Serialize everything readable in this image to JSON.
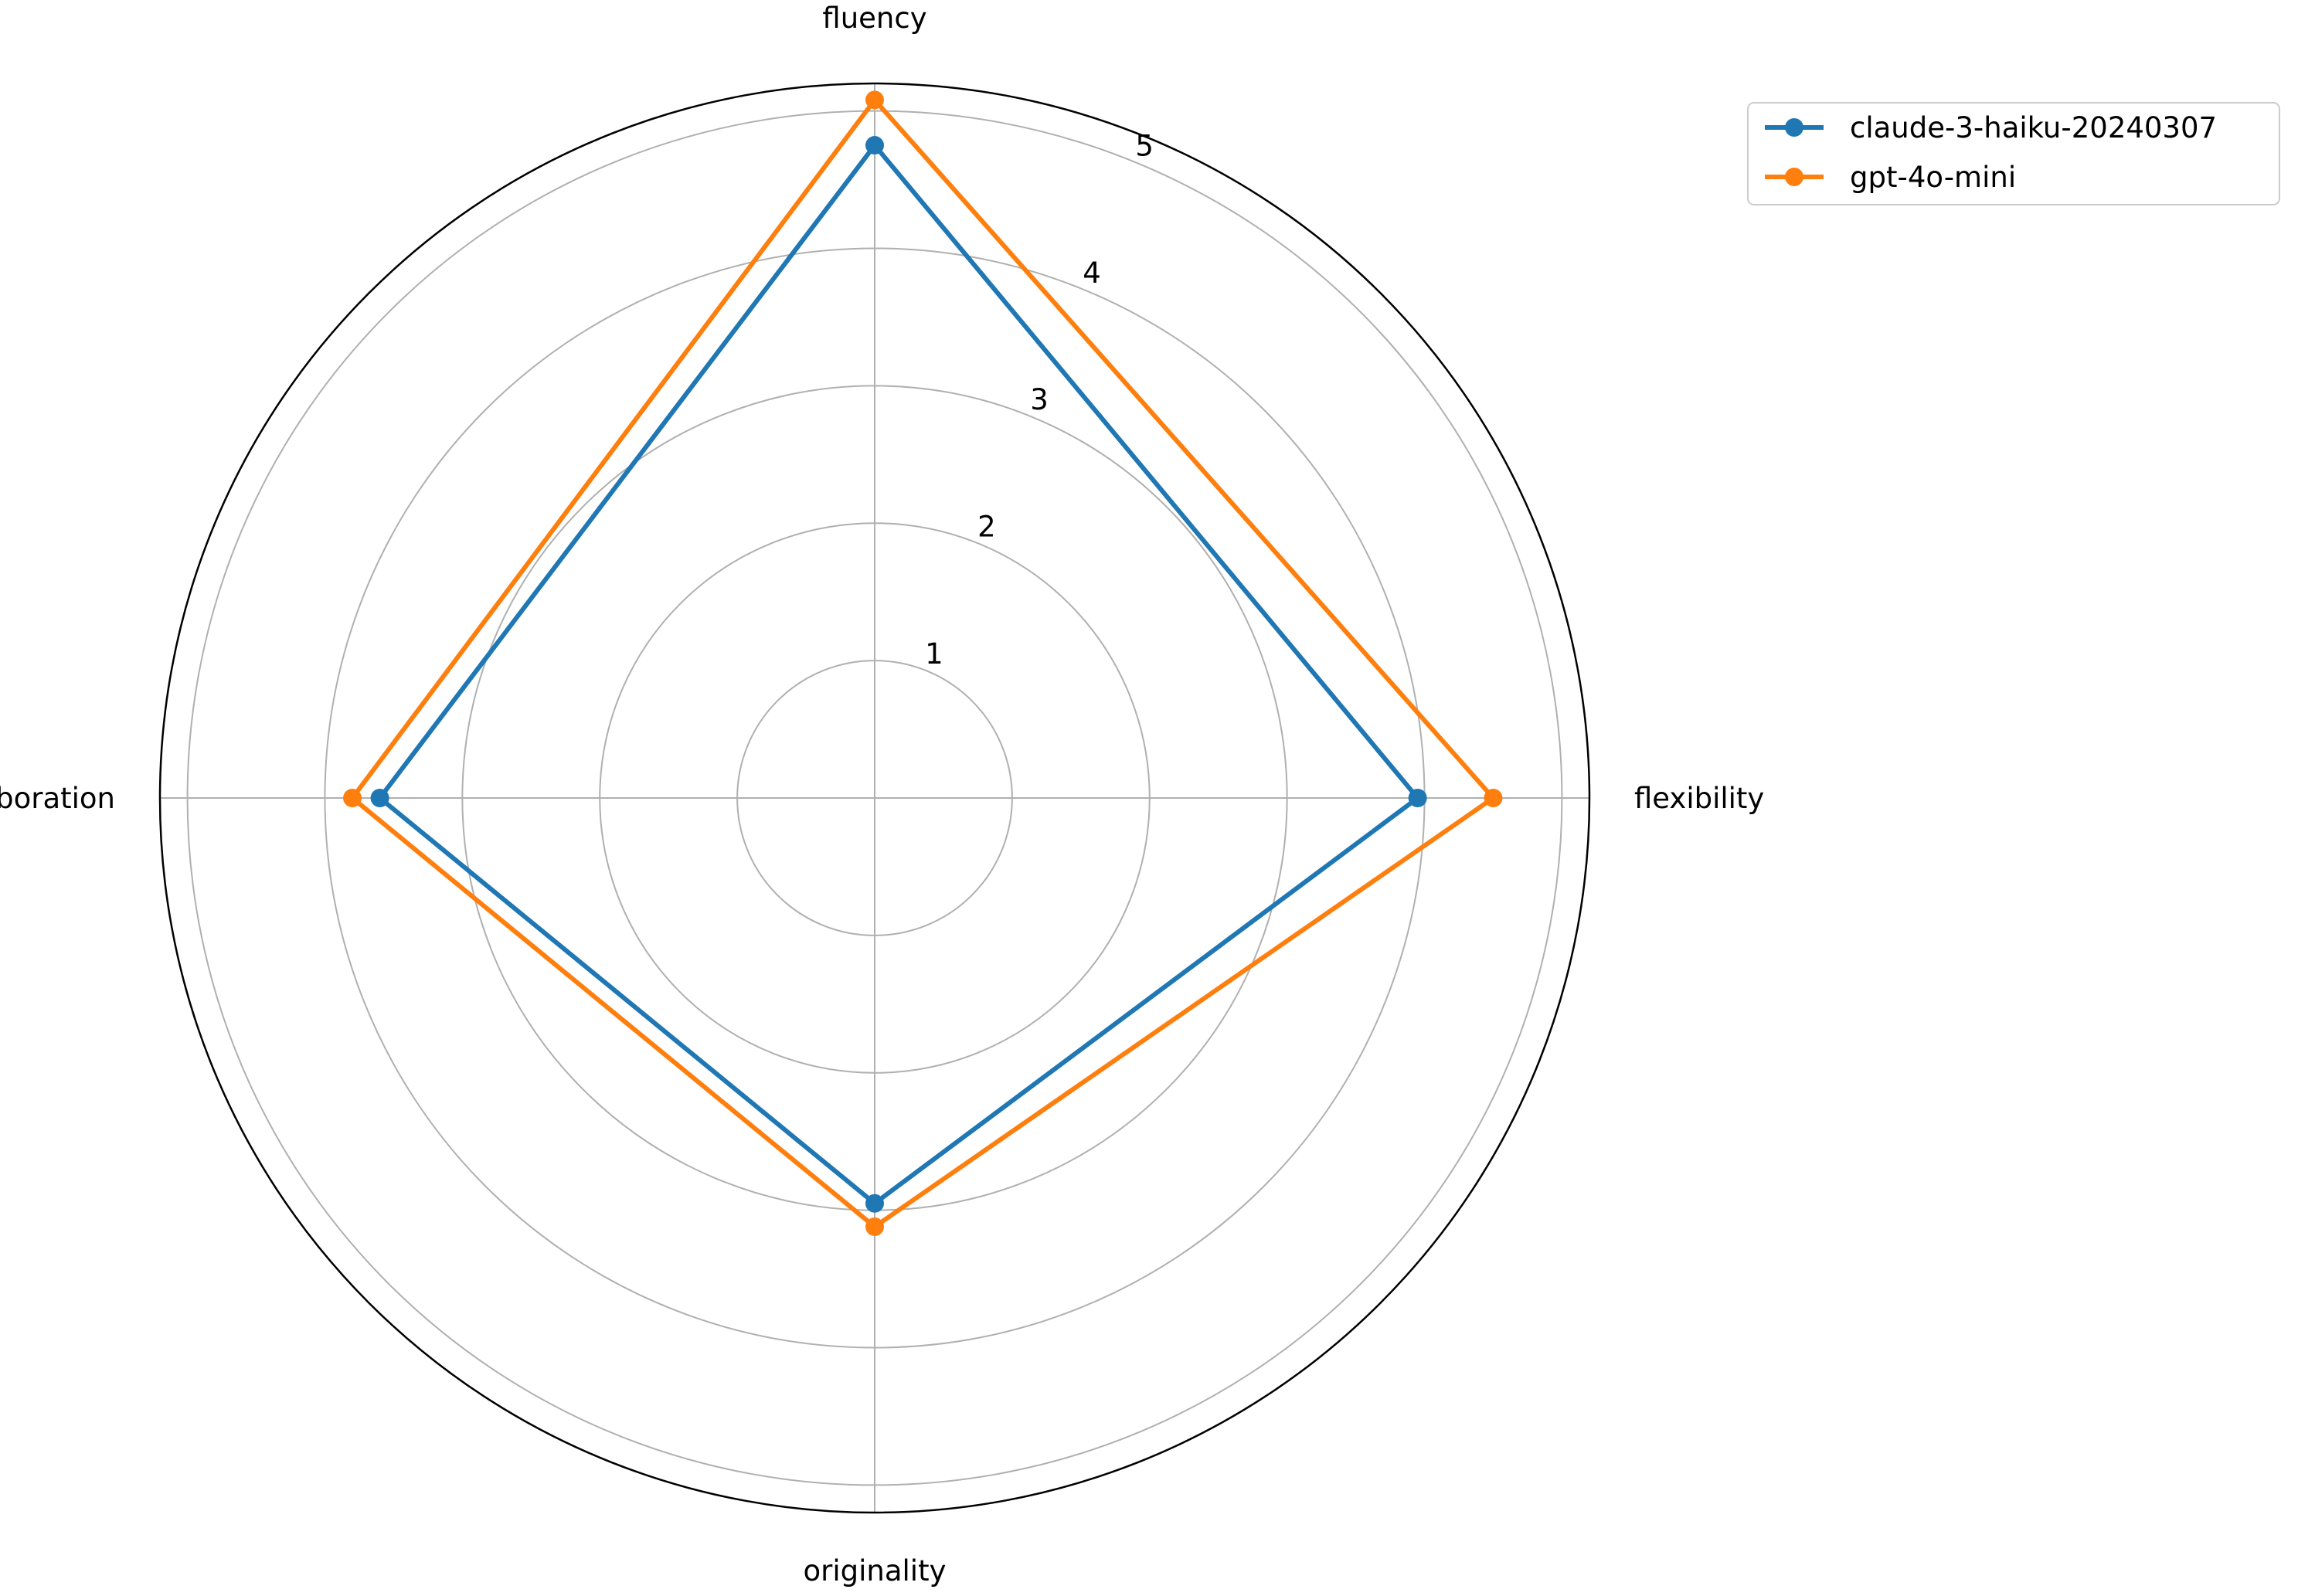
{
  "chart_data": {
    "type": "radar",
    "axes": [
      "fluency",
      "flexibility",
      "originality",
      "elaboration"
    ],
    "rlim": [
      0,
      5.2
    ],
    "rticks": [
      1,
      2,
      3,
      4,
      5
    ],
    "rtick_labels": [
      "1",
      "2",
      "3",
      "4",
      "5"
    ],
    "grid": true,
    "legend_placement": "top-right (outside plot)",
    "series": [
      {
        "name": "claude-3-haiku-20240307",
        "color": "#1f77b4",
        "values": [
          4.75,
          3.95,
          2.95,
          3.6
        ]
      },
      {
        "name": "gpt-4o-mini",
        "color": "#ff7f0e",
        "values": [
          5.08,
          4.5,
          3.12,
          3.8
        ]
      }
    ]
  }
}
